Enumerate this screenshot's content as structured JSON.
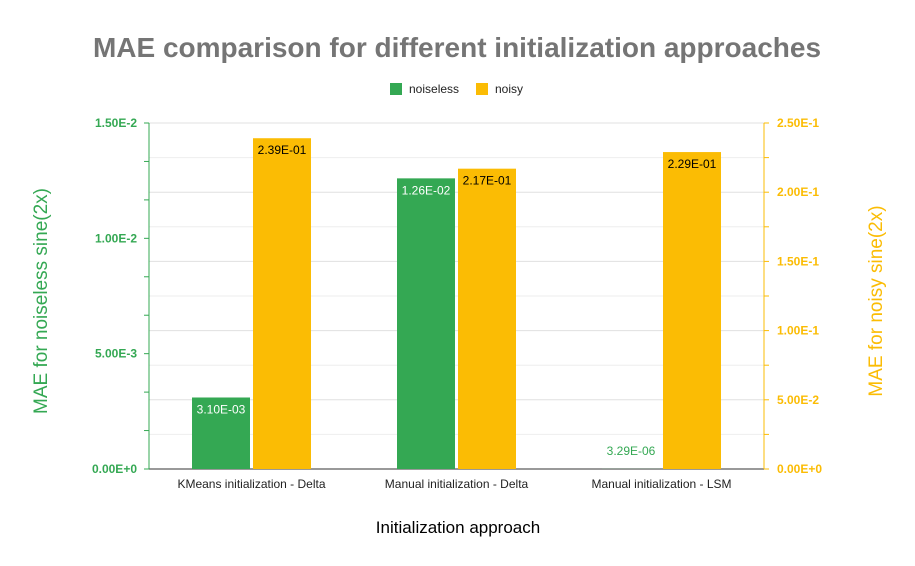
{
  "chart_data": {
    "type": "bar",
    "title": "MAE comparison for different initialization approaches",
    "xlabel": "Initialization approach",
    "categories": [
      "KMeans initialization - Delta",
      "Manual initialization - Delta",
      "Manual initialization - LSM"
    ],
    "series": [
      {
        "name": "noiseless",
        "axis": "left",
        "color": "#34a853",
        "values": [
          0.0031,
          0.0126,
          3.29e-06
        ],
        "labels": [
          "3.10E-03",
          "1.26E-02",
          "3.29E-06"
        ]
      },
      {
        "name": "noisy",
        "axis": "right",
        "color": "#fbbc04",
        "values": [
          0.239,
          0.217,
          0.229
        ],
        "labels": [
          "2.39E-01",
          "2.17E-01",
          "2.29E-01"
        ]
      }
    ],
    "y_left": {
      "label": "MAE for noiseless sine(2x)",
      "range": [
        0,
        0.015
      ],
      "ticks": [
        0,
        0.005,
        0.01,
        0.015
      ],
      "tick_labels": [
        "0.00E+0",
        "5.00E-3",
        "1.00E-2",
        "1.50E-2"
      ],
      "color": "#34a853"
    },
    "y_right": {
      "label": "MAE for noisy sine(2x)",
      "range": [
        0,
        0.25
      ],
      "ticks": [
        0,
        0.05,
        0.1,
        0.15,
        0.2,
        0.25
      ],
      "tick_labels": [
        "0.00E+0",
        "5.00E-2",
        "1.00E-1",
        "1.50E-1",
        "2.00E-1",
        "2.50E-1"
      ],
      "color": "#fbbc04"
    },
    "legend_position": "top-center",
    "grid": true
  }
}
